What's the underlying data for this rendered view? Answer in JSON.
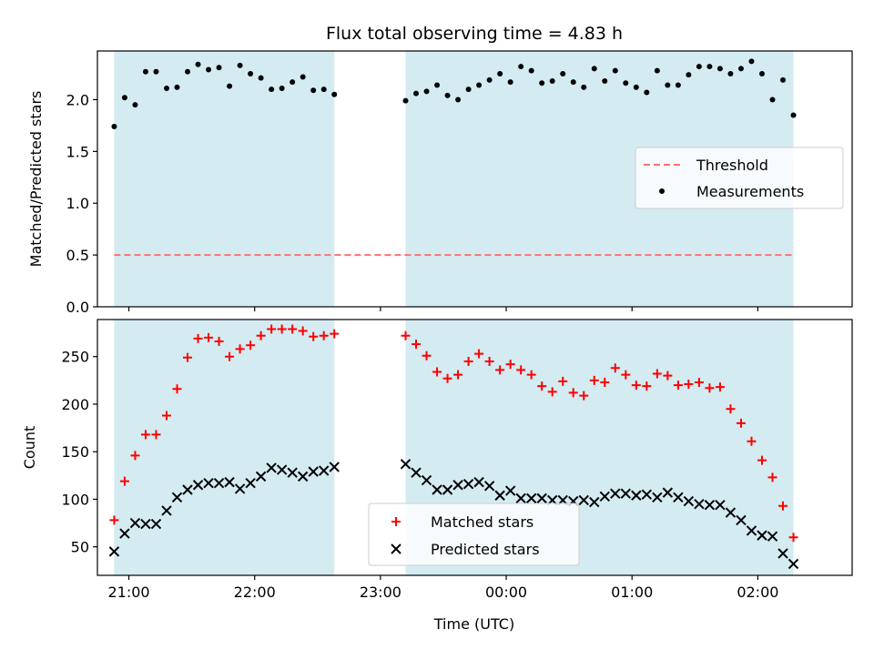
{
  "title": "Flux total observing time = 4.83 h",
  "xlabel": "Time (UTC)",
  "x_tick_labels": [
    "21:00",
    "22:00",
    "23:00",
    "00:00",
    "01:00",
    "02:00"
  ],
  "colors": {
    "observing_band": "#add8e6",
    "threshold": "#ff7070",
    "matched": "#ff0000",
    "predicted": "#000000",
    "measurement": "#000000"
  },
  "chart_data": [
    {
      "type": "scatter",
      "ylabel": "Matched/Predicted stars",
      "ylim": [
        0,
        2.47
      ],
      "y_ticks": [
        0.0,
        0.5,
        1.0,
        1.5,
        2.0
      ],
      "y_tick_labels": [
        "0.0",
        "0.5",
        "1.0",
        "1.5",
        "2.0"
      ],
      "xlim": [
        "20:45",
        "02:45"
      ],
      "observing_windows": [
        [
          "20:53",
          "22:38"
        ],
        [
          "23:12",
          "02:17"
        ]
      ],
      "threshold": 0.5,
      "legend": {
        "position": "center-right",
        "entries": [
          "Threshold",
          "Measurements"
        ]
      },
      "series": [
        {
          "name": "Measurements",
          "x": [
            "20:53",
            "20:58",
            "21:03",
            "21:08",
            "21:13",
            "21:18",
            "21:23",
            "21:28",
            "21:33",
            "21:38",
            "21:43",
            "21:48",
            "21:53",
            "21:58",
            "22:03",
            "22:08",
            "22:13",
            "22:18",
            "22:23",
            "22:28",
            "22:33",
            "22:38",
            "23:12",
            "23:17",
            "23:22",
            "23:27",
            "23:32",
            "23:37",
            "23:42",
            "23:47",
            "23:52",
            "23:57",
            "00:02",
            "00:07",
            "00:12",
            "00:17",
            "00:22",
            "00:27",
            "00:32",
            "00:37",
            "00:42",
            "00:47",
            "00:52",
            "00:57",
            "01:02",
            "01:07",
            "01:12",
            "01:17",
            "01:22",
            "01:27",
            "01:32",
            "01:37",
            "01:42",
            "01:47",
            "01:52",
            "01:57",
            "02:02",
            "02:07",
            "02:12",
            "02:17"
          ],
          "y": [
            1.74,
            2.02,
            1.95,
            2.27,
            2.27,
            2.11,
            2.12,
            2.27,
            2.34,
            2.29,
            2.31,
            2.13,
            2.33,
            2.25,
            2.21,
            2.1,
            2.11,
            2.17,
            2.22,
            2.09,
            2.1,
            2.05,
            1.99,
            2.06,
            2.08,
            2.14,
            2.04,
            2.0,
            2.1,
            2.14,
            2.19,
            2.25,
            2.17,
            2.32,
            2.28,
            2.16,
            2.18,
            2.25,
            2.17,
            2.12,
            2.3,
            2.18,
            2.28,
            2.16,
            2.12,
            2.07,
            2.28,
            2.14,
            2.14,
            2.24,
            2.32,
            2.32,
            2.3,
            2.25,
            2.3,
            2.37,
            2.25,
            2.0,
            2.19,
            1.85
          ]
        }
      ]
    },
    {
      "type": "scatter",
      "ylabel": "Count",
      "ylim": [
        20,
        289
      ],
      "y_ticks": [
        50,
        100,
        150,
        200,
        250
      ],
      "y_tick_labels": [
        "50",
        "100",
        "150",
        "200",
        "250"
      ],
      "xlim": [
        "20:45",
        "02:45"
      ],
      "observing_windows": [
        [
          "20:53",
          "22:38"
        ],
        [
          "23:12",
          "02:17"
        ]
      ],
      "legend": {
        "position": "bottom-center",
        "entries": [
          "Matched stars",
          "Predicted stars"
        ]
      },
      "series": [
        {
          "name": "Matched stars",
          "x": [
            "20:53",
            "20:58",
            "21:03",
            "21:08",
            "21:13",
            "21:18",
            "21:23",
            "21:28",
            "21:33",
            "21:38",
            "21:43",
            "21:48",
            "21:53",
            "21:58",
            "22:03",
            "22:08",
            "22:13",
            "22:18",
            "22:23",
            "22:28",
            "22:33",
            "22:38",
            "23:12",
            "23:17",
            "23:22",
            "23:27",
            "23:32",
            "23:37",
            "23:42",
            "23:47",
            "23:52",
            "23:57",
            "00:02",
            "00:07",
            "00:12",
            "00:17",
            "00:22",
            "00:27",
            "00:32",
            "00:37",
            "00:42",
            "00:47",
            "00:52",
            "00:57",
            "01:02",
            "01:07",
            "01:12",
            "01:17",
            "01:22",
            "01:27",
            "01:32",
            "01:37",
            "01:42",
            "01:47",
            "01:52",
            "01:57",
            "02:02",
            "02:07",
            "02:12",
            "02:17"
          ],
          "y": [
            78,
            119,
            146,
            168,
            168,
            188,
            216,
            249,
            269,
            270,
            266,
            250,
            258,
            262,
            272,
            279,
            279,
            279,
            277,
            271,
            272,
            274,
            272,
            263,
            251,
            234,
            227,
            231,
            245,
            253,
            245,
            236,
            242,
            236,
            231,
            219,
            213,
            224,
            212,
            209,
            225,
            223,
            238,
            231,
            220,
            219,
            232,
            230,
            220,
            221,
            223,
            217,
            218,
            195,
            180,
            161,
            141,
            123,
            93,
            60
          ]
        },
        {
          "name": "Predicted stars",
          "x": [
            "20:53",
            "20:58",
            "21:03",
            "21:08",
            "21:13",
            "21:18",
            "21:23",
            "21:28",
            "21:33",
            "21:38",
            "21:43",
            "21:48",
            "21:53",
            "21:58",
            "22:03",
            "22:08",
            "22:13",
            "22:18",
            "22:23",
            "22:28",
            "22:33",
            "22:38",
            "23:12",
            "23:17",
            "23:22",
            "23:27",
            "23:32",
            "23:37",
            "23:42",
            "23:47",
            "23:52",
            "23:57",
            "00:02",
            "00:07",
            "00:12",
            "00:17",
            "00:22",
            "00:27",
            "00:32",
            "00:37",
            "00:42",
            "00:47",
            "00:52",
            "00:57",
            "01:02",
            "01:07",
            "01:12",
            "01:17",
            "01:22",
            "01:27",
            "01:32",
            "01:37",
            "01:42",
            "01:47",
            "01:52",
            "01:57",
            "02:02",
            "02:07",
            "02:12",
            "02:17"
          ],
          "y": [
            45,
            64,
            75,
            74,
            74,
            88,
            102,
            110,
            115,
            117,
            117,
            118,
            111,
            117,
            124,
            133,
            131,
            128,
            124,
            129,
            130,
            134,
            137,
            128,
            120,
            110,
            110,
            115,
            116,
            118,
            114,
            104,
            109,
            101,
            101,
            101,
            99,
            99,
            98,
            99,
            97,
            103,
            106,
            106,
            104,
            105,
            102,
            107,
            102,
            98,
            95,
            94,
            94,
            86,
            78,
            67,
            62,
            61,
            43,
            32
          ]
        }
      ]
    }
  ]
}
